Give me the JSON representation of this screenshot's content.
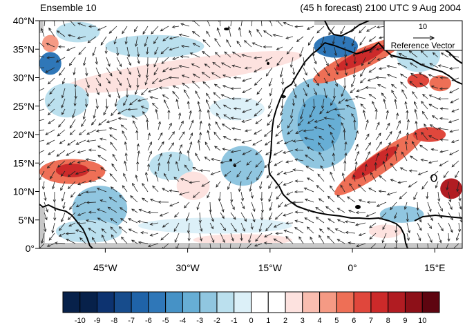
{
  "chart_data": {
    "type": "heatmap",
    "title_left": "Ensemble 10",
    "title_right": "(45 h forecast) 2100 UTC 9 Aug 2004",
    "lon_range": [
      -57,
      20
    ],
    "lat_range": [
      0,
      40
    ],
    "x_ticks": [
      {
        "lon": -45,
        "label": "45°W"
      },
      {
        "lon": -30,
        "label": "30°W"
      },
      {
        "lon": -15,
        "label": "15°W"
      },
      {
        "lon": 0,
        "label": "0°"
      },
      {
        "lon": 15,
        "label": "15°E"
      }
    ],
    "y_ticks": [
      {
        "lat": 0,
        "label": "0°"
      },
      {
        "lat": 5,
        "label": "5°N"
      },
      {
        "lat": 10,
        "label": "10°N"
      },
      {
        "lat": 15,
        "label": "15°N"
      },
      {
        "lat": 20,
        "label": "20°N"
      },
      {
        "lat": 25,
        "label": "25°N"
      },
      {
        "lat": 30,
        "label": "30°N"
      },
      {
        "lat": 35,
        "label": "35°N"
      },
      {
        "lat": 40,
        "label": "40°N"
      }
    ],
    "reference_vector": {
      "magnitude": "10",
      "label": "Reference Vector"
    },
    "colorbar": {
      "labels": [
        "-10",
        "-9",
        "-8",
        "-7",
        "-6",
        "-5",
        "-4",
        "-3",
        "-2",
        "-1",
        "0",
        "1",
        "2",
        "3",
        "4",
        "5",
        "6",
        "7",
        "8",
        "9",
        "10"
      ],
      "colors": [
        "#07214a",
        "#0d3370",
        "#174c8c",
        "#1f63a8",
        "#2f77b8",
        "#4692c6",
        "#67aed5",
        "#90c6e0",
        "#bbe0ee",
        "#dcf0f8",
        "#ffffff",
        "#ffffff",
        "#fde2df",
        "#f9bdb0",
        "#f59a84",
        "#ee6f56",
        "#e0473c",
        "#cc2a2a",
        "#b11c22",
        "#8d1018",
        "#5e0510"
      ]
    },
    "anomaly_blobs": [
      {
        "lon": -31,
        "lat": 31,
        "rx": 22,
        "ry": 2.2,
        "value": 2,
        "rot": -8
      },
      {
        "lon": -36,
        "lat": 35.5,
        "rx": 9,
        "ry": 2,
        "value": -2,
        "rot": 0
      },
      {
        "lon": -50,
        "lat": 38,
        "rx": 4,
        "ry": 1.8,
        "value": -2,
        "rot": 0
      },
      {
        "lon": -55,
        "lat": 32.5,
        "rx": 2,
        "ry": 2,
        "value": -6,
        "rot": 0
      },
      {
        "lon": -55,
        "lat": 36,
        "rx": 1.5,
        "ry": 1.5,
        "value": 4,
        "rot": 0
      },
      {
        "lon": -52,
        "lat": 26,
        "rx": 4,
        "ry": 3,
        "value": -2,
        "rot": 0
      },
      {
        "lon": -40,
        "lat": 25,
        "rx": 3,
        "ry": 2,
        "value": -2,
        "rot": 0
      },
      {
        "lon": -21,
        "lat": 24.5,
        "rx": 5,
        "ry": 2,
        "value": -1,
        "rot": 0
      },
      {
        "lon": -51,
        "lat": 13.5,
        "rx": 6,
        "ry": 2.2,
        "value": 5,
        "rot": 0
      },
      {
        "lon": -51,
        "lat": 13.7,
        "rx": 3,
        "ry": 1.2,
        "value": 7,
        "rot": 0
      },
      {
        "lon": -46,
        "lat": 7,
        "rx": 5,
        "ry": 4,
        "value": -3,
        "rot": 0
      },
      {
        "lon": -48,
        "lat": 3,
        "rx": 6,
        "ry": 2,
        "value": -2,
        "rot": 0
      },
      {
        "lon": -33,
        "lat": 14.5,
        "rx": 4,
        "ry": 2.5,
        "value": -2,
        "rot": 0
      },
      {
        "lon": -29,
        "lat": 11,
        "rx": 3,
        "ry": 2.5,
        "value": 2,
        "rot": 0
      },
      {
        "lon": -20,
        "lat": 14.5,
        "rx": 4,
        "ry": 3.5,
        "value": -3,
        "rot": 0
      },
      {
        "lon": -25,
        "lat": 4,
        "rx": 14,
        "ry": 1.4,
        "value": -1,
        "rot": 0
      },
      {
        "lon": -20,
        "lat": 1.5,
        "rx": 9,
        "ry": 1,
        "value": 2,
        "rot": 0
      },
      {
        "lon": -6,
        "lat": 22,
        "rx": 7,
        "ry": 8,
        "value": -3,
        "rot": 0
      },
      {
        "lon": -6,
        "lat": 22,
        "rx": 4,
        "ry": 5,
        "value": -4,
        "rot": 0
      },
      {
        "lon": 1,
        "lat": 33,
        "rx": 9,
        "ry": 1.8,
        "value": 5,
        "rot": -25
      },
      {
        "lon": 1.5,
        "lat": 33.5,
        "rx": 5,
        "ry": 1.1,
        "value": 7,
        "rot": -25
      },
      {
        "lon": -3,
        "lat": 35.5,
        "rx": 4,
        "ry": 2,
        "value": -6,
        "rot": 0
      },
      {
        "lon": 5,
        "lat": 15,
        "rx": 10,
        "ry": 1.8,
        "value": 5,
        "rot": -35
      },
      {
        "lon": 4,
        "lat": 15,
        "rx": 5,
        "ry": 1.1,
        "value": 7,
        "rot": -35
      },
      {
        "lon": 14,
        "lat": 20,
        "rx": 3,
        "ry": 1.3,
        "value": 6,
        "rot": 0
      },
      {
        "lon": 18,
        "lat": 10.5,
        "rx": 2,
        "ry": 1.8,
        "value": 8,
        "rot": 0
      },
      {
        "lon": 12,
        "lat": 29.5,
        "rx": 2,
        "ry": 1.2,
        "value": 6,
        "rot": 0
      },
      {
        "lon": 16,
        "lat": 29,
        "rx": 2,
        "ry": 1.4,
        "value": 5,
        "rot": 0
      },
      {
        "lon": 12,
        "lat": 34,
        "rx": 4,
        "ry": 3,
        "value": -2,
        "rot": 0
      },
      {
        "lon": 9,
        "lat": 6,
        "rx": 4,
        "ry": 1.5,
        "value": -3,
        "rot": 0
      },
      {
        "lon": 6,
        "lat": 3,
        "rx": 3,
        "ry": 1.2,
        "value": 2,
        "rot": 0
      }
    ]
  }
}
